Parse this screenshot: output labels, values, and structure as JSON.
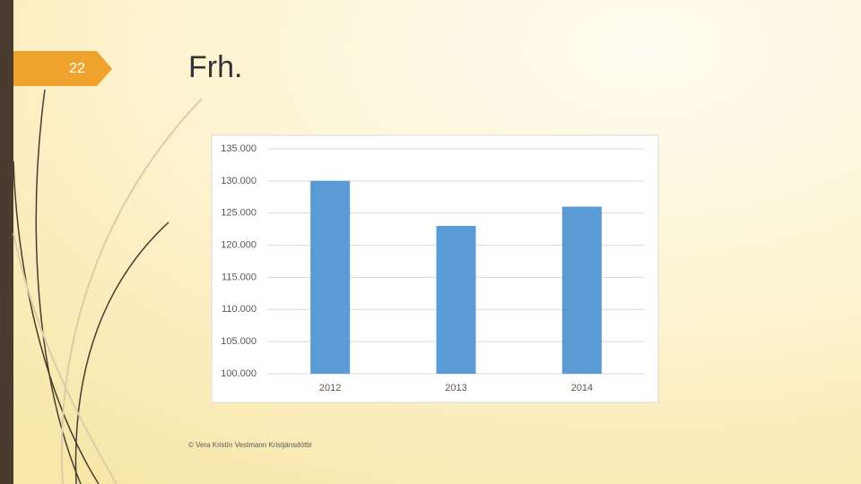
{
  "slide_number": "22",
  "slide_title": "Frh.",
  "footer": "© Vera Kristín Vestmann Kristjánsdóttir",
  "chart_data": {
    "type": "bar",
    "categories": [
      "2012",
      "2013",
      "2014"
    ],
    "values": [
      130000,
      123000,
      126000
    ],
    "color": "#5b9bd5",
    "ylim": [
      100000,
      135000
    ],
    "yticks": [
      {
        "value": 100000,
        "label": "100.000"
      },
      {
        "value": 105000,
        "label": "105.000"
      },
      {
        "value": 110000,
        "label": "110.000"
      },
      {
        "value": 115000,
        "label": "115.000"
      },
      {
        "value": 120000,
        "label": "120.000"
      },
      {
        "value": 125000,
        "label": "125.000"
      },
      {
        "value": 130000,
        "label": "130.000"
      },
      {
        "value": 135000,
        "label": "135.000"
      }
    ],
    "grid": true
  }
}
